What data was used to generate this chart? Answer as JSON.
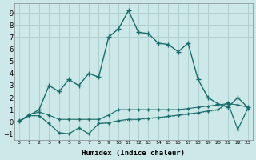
{
  "xlabel": "Humidex (Indice chaleur)",
  "bg_color": "#cce8e8",
  "grid_color": "#b0d0d0",
  "line_color": "#1a6b6b",
  "xlim": [
    -0.5,
    23.5
  ],
  "ylim": [
    -1.5,
    9.8
  ],
  "yticks": [
    -1,
    0,
    1,
    2,
    3,
    4,
    5,
    6,
    7,
    8,
    9
  ],
  "xticks": [
    0,
    1,
    2,
    3,
    4,
    5,
    6,
    7,
    8,
    9,
    10,
    11,
    12,
    13,
    14,
    15,
    16,
    17,
    18,
    19,
    20,
    21,
    22,
    23
  ],
  "line_main_x": [
    0,
    2,
    3,
    4,
    5,
    6,
    7,
    8,
    9,
    10,
    11,
    12,
    13,
    14,
    15,
    16,
    17,
    18,
    19,
    20,
    21,
    22,
    23
  ],
  "line_main_y": [
    0.05,
    1.0,
    3.0,
    2.5,
    3.5,
    3.0,
    4.0,
    3.7,
    7.0,
    7.7,
    9.2,
    7.4,
    7.3,
    6.5,
    6.4,
    5.8,
    6.5,
    3.5,
    2.0,
    1.5,
    1.2,
    2.0,
    1.2
  ],
  "line_upper_flat_x": [
    0,
    1,
    2,
    3,
    4,
    5,
    6,
    7,
    8,
    9,
    10,
    11,
    12,
    13,
    14,
    15,
    16,
    17,
    18,
    19,
    20,
    21,
    22,
    23
  ],
  "line_upper_flat_y": [
    0.05,
    0.6,
    0.8,
    0.55,
    0.2,
    0.2,
    0.2,
    0.2,
    0.2,
    0.55,
    1.0,
    1.0,
    1.0,
    1.0,
    1.0,
    1.0,
    1.0,
    1.1,
    1.2,
    1.3,
    1.4,
    1.5,
    1.4,
    1.2
  ],
  "line_lower_x": [
    0,
    1,
    2,
    3,
    4,
    5,
    6,
    7,
    8,
    9,
    10,
    11,
    12,
    13,
    14,
    15,
    16,
    17,
    18,
    19,
    20,
    21,
    22,
    23
  ],
  "line_lower_y": [
    0.05,
    0.5,
    0.5,
    -0.15,
    -0.9,
    -1.0,
    -0.5,
    -1.0,
    -0.15,
    -0.1,
    0.1,
    0.2,
    0.2,
    0.3,
    0.35,
    0.45,
    0.55,
    0.65,
    0.75,
    0.9,
    1.0,
    1.6,
    -0.65,
    1.1
  ],
  "line_dotted_x": [
    0,
    1,
    2,
    3,
    4,
    5,
    6,
    7,
    8,
    9,
    10,
    11,
    12,
    13,
    14,
    15,
    16,
    17,
    18,
    19,
    20,
    21,
    22,
    23
  ],
  "line_dotted_y": [
    0.05,
    0.5,
    0.5,
    -0.15,
    -0.9,
    -1.0,
    -0.5,
    -1.0,
    -0.15,
    -0.05,
    0.05,
    0.12,
    0.18,
    0.25,
    0.32,
    0.42,
    0.52,
    0.62,
    0.72,
    0.85,
    0.95,
    1.55,
    -0.65,
    1.05
  ]
}
